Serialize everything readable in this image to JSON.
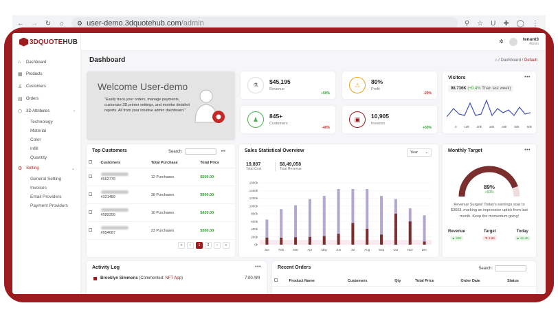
{
  "browser": {
    "url_host": "user-demo.3dquotehub.com",
    "url_path": "/admin",
    "icons": [
      "back-icon",
      "forward-icon",
      "reload-icon",
      "home-icon",
      "zoom-icon",
      "star-icon",
      "extension-icon",
      "profile-icon"
    ]
  },
  "brand": {
    "logo_a": "3DQUOTE",
    "logo_b": "HUB"
  },
  "sidebar": {
    "items": [
      {
        "label": "Dashboard",
        "icon": "home-icon"
      },
      {
        "label": "Products",
        "icon": "box-icon"
      },
      {
        "label": "Customers",
        "icon": "user-icon"
      },
      {
        "label": "Orders",
        "icon": "cart-icon"
      },
      {
        "label": "3D Attributes",
        "icon": "cube-icon"
      }
    ],
    "attributes_sub": [
      "Technology",
      "Material",
      "Color",
      "Infill",
      "Quantity"
    ],
    "setting": {
      "label": "Setting",
      "icon": "gear-icon"
    },
    "setting_sub": [
      "General Setting",
      "Invoices",
      "Email Providers",
      "Payment Providers"
    ]
  },
  "header": {
    "user_name": "tenant3",
    "user_role": "Admin"
  },
  "page": {
    "title": "Dashboard",
    "breadcrumb_a": "Dashboard",
    "breadcrumb_sep": "/",
    "breadcrumb_b": "Default"
  },
  "welcome": {
    "title": "Welcome User-demo",
    "text": "\"Easily track your orders, manage payments, customize 3D printer settings, and monitor detailed reports. All from your intuitive admin dashboard.\""
  },
  "stats": [
    {
      "value": "$45,195",
      "label": "Revenue",
      "change": "+50%",
      "dir": "up",
      "color": "#777777"
    },
    {
      "value": "80%",
      "label": "Profit",
      "change": "-20%",
      "dir": "down",
      "color": "#e6a417"
    },
    {
      "value": "845+",
      "label": "Customers",
      "change": "-40%",
      "dir": "down",
      "color": "#4caf50"
    },
    {
      "value": "10,905",
      "label": "Invoices",
      "change": "+50%",
      "dir": "up",
      "color": "#9c1b1f"
    }
  ],
  "visitors": {
    "title": "Visitors",
    "value": "98.736K",
    "change": "(+0.4%",
    "note": "Than last week)",
    "x_ticks": [
      "0",
      "10k",
      "20k",
      "30k",
      "40k",
      "50k",
      "60k"
    ]
  },
  "top_customers": {
    "title": "Top Customers",
    "search_label": "Search:",
    "headers": [
      "Customers",
      "Total Purchase",
      "Total Price"
    ],
    "rows": [
      {
        "id": "#562778",
        "purchases": "12 Purchases",
        "price": "$500.00"
      },
      {
        "id": "#321489",
        "purchases": "38 Purchases",
        "price": "$900.00"
      },
      {
        "id": "#589356",
        "purchases": "10 Purchases",
        "price": "$420.00"
      },
      {
        "id": "#954687",
        "purchases": "23 Purchases",
        "price": "$300.00"
      }
    ],
    "pages": [
      "«",
      "‹",
      "1",
      "2",
      "›",
      "»"
    ]
  },
  "sales": {
    "title": "Sales Statistical Overview",
    "period": "Year",
    "cost_value": "19,897",
    "cost_label": "Total Cost",
    "revenue_value": "$8,49,058",
    "revenue_label": "Total Revenue"
  },
  "chart_data": {
    "type": "bar",
    "categories": [
      "Jan",
      "Feb",
      "Mar",
      "Apr",
      "May",
      "Jun",
      "Jul",
      "Aug",
      "Sep",
      "Oct",
      "Nov",
      "Dec"
    ],
    "series": [
      {
        "values": [
          650,
          920,
          1020,
          1180,
          1260,
          1440,
          1440,
          1440,
          1260,
          1180,
          940,
          760
        ],
        "color": "#b3a7cf"
      },
      {
        "values": [
          180,
          180,
          190,
          200,
          220,
          280,
          560,
          410,
          260,
          800,
          600,
          80
        ],
        "color": "#7b2e2e"
      }
    ],
    "y_ticks": [
      "0k",
      "200k",
      "400k",
      "600k",
      "800k",
      "1000k",
      "1200k",
      "1400k",
      "1600k"
    ],
    "ylim": [
      0,
      1600
    ]
  },
  "monthly_target": {
    "title": "Monthly Target",
    "percent": "89%",
    "change": "+60%",
    "fraction": 0.89,
    "message": "Revenue Surges! Today's earnings soar to $3653, marking an impressive uptick from last month. Keep the momentum going!",
    "cols": [
      {
        "label": "Revenue",
        "pill": "▲ 20K",
        "color": "#2e9d2e"
      },
      {
        "label": "Target",
        "pill": "▼ 3.5K",
        "color": "#c62828"
      },
      {
        "label": "Today",
        "pill": "▲ 21.4K",
        "color": "#2e9d2e"
      }
    ]
  },
  "activity": {
    "title": "Activity Log",
    "entry_name": "Brooklyn Simmons",
    "entry_action": "(Commented:",
    "entry_link": "NFT App",
    "entry_close": ")",
    "entry_time": "7:00 AM"
  },
  "recent_orders": {
    "title": "Recent Orders",
    "search_label": "Search:",
    "headers": [
      "Product Name",
      "Customers",
      "Qty",
      "Total Price",
      "Order Date",
      "Status"
    ]
  }
}
